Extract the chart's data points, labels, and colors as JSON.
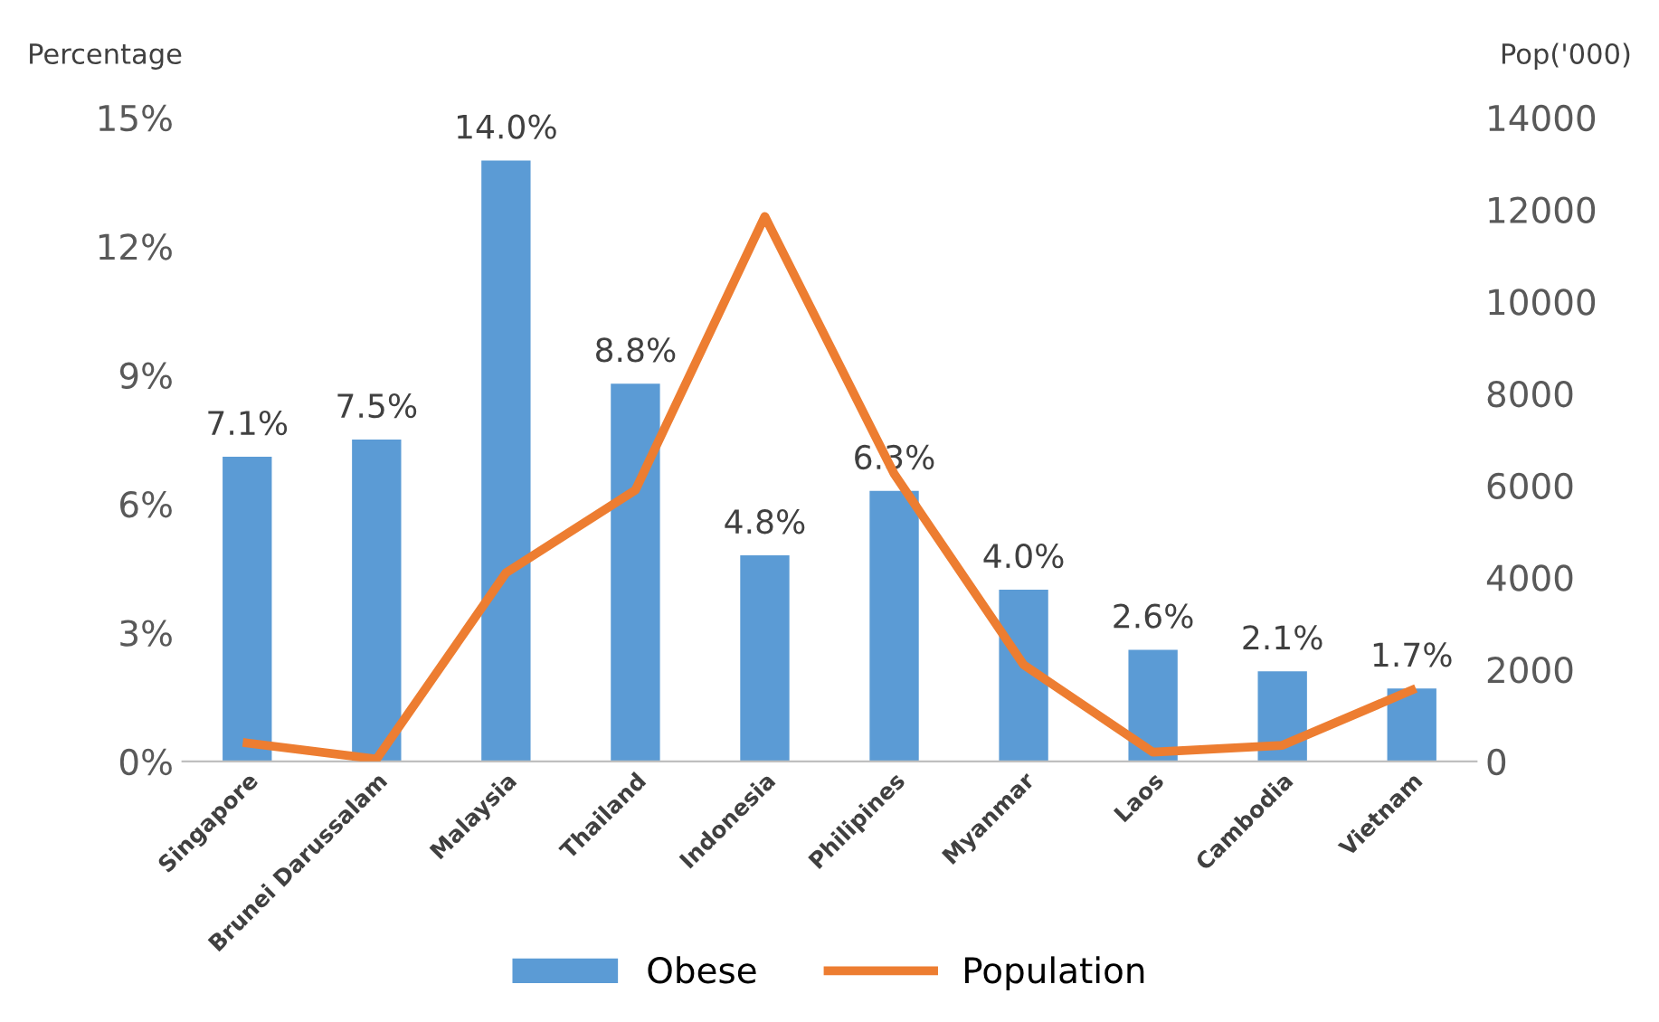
{
  "chart_data": {
    "type": "bar",
    "ylabel": "Percentage",
    "y2label": "Pop('000)",
    "categories": [
      "Singapore",
      "Brunei Darussalam",
      "Malaysia",
      "Thailand",
      "Indonesia",
      "Philipines",
      "Myanmar",
      "Laos",
      "Cambodia",
      "Vietnam"
    ],
    "series": [
      {
        "name": "Obese",
        "color": "#5b9bd5",
        "values": [
          7.1,
          7.5,
          14.0,
          8.8,
          4.8,
          6.3,
          4.0,
          2.6,
          2.1,
          1.7
        ],
        "value_labels": [
          "7.1%",
          "7.5%",
          "14.0%",
          "8.8%",
          "4.8%",
          "6.3%",
          "4.0%",
          "2.6%",
          "2.1%",
          "1.7%"
        ]
      },
      {
        "name": "Population",
        "type": "line",
        "axis": "y2",
        "color": "#ed7d31",
        "values": [
          400,
          50,
          4100,
          5900,
          11850,
          6250,
          2100,
          200,
          350,
          1550
        ]
      }
    ],
    "ylim": [
      0,
      15
    ],
    "yticks": [
      {
        "value": 0,
        "label": "0%"
      },
      {
        "value": 3,
        "label": "3%"
      },
      {
        "value": 6,
        "label": "6%"
      },
      {
        "value": 9,
        "label": "9%"
      },
      {
        "value": 12,
        "label": "12%"
      },
      {
        "value": 15,
        "label": "15%"
      }
    ],
    "y2lim": [
      0,
      14000
    ],
    "y2ticks": [
      0,
      2000,
      4000,
      6000,
      8000,
      10000,
      12000,
      14000
    ],
    "grid": false,
    "legend": "bottom",
    "marker": "none",
    "line_style": "solid"
  }
}
